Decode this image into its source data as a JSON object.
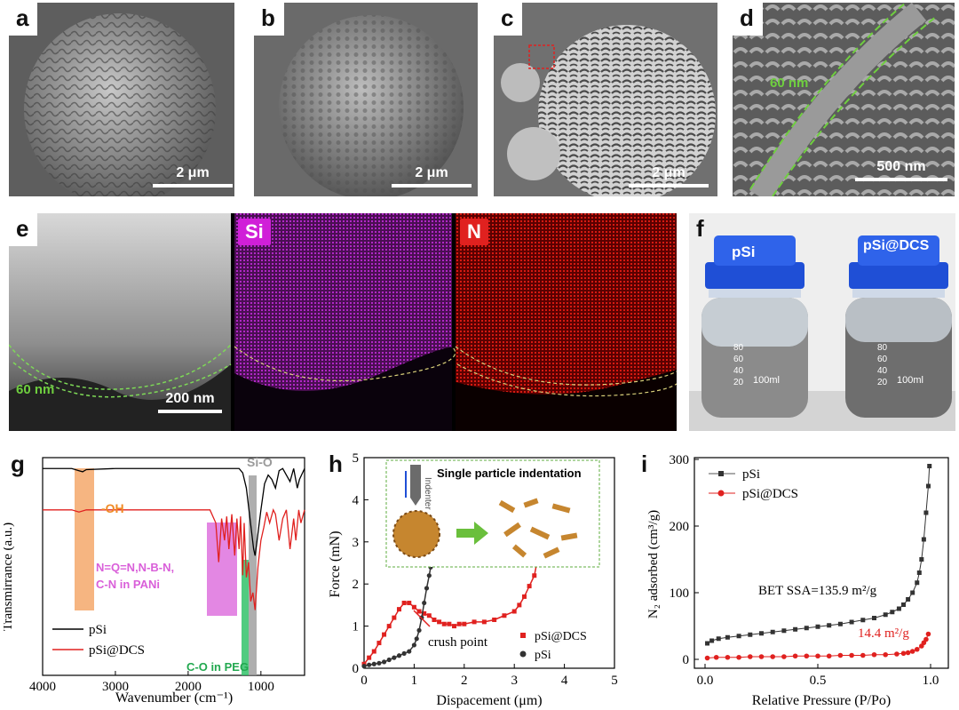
{
  "panels": {
    "a": {
      "label": "a",
      "scale": "2 μm"
    },
    "b": {
      "label": "b",
      "scale": "2 μm"
    },
    "c": {
      "label": "c",
      "scale": "2 μm"
    },
    "d": {
      "label": "d",
      "scale": "500 nm",
      "thickness": "60 nm"
    },
    "e": {
      "label": "e",
      "scale": "200 nm",
      "thickness": "60 nm",
      "map_si": "Si",
      "map_n": "N"
    },
    "f": {
      "label": "f",
      "bottle_left": "pSi",
      "bottle_right": "pSi@DCS",
      "volume": "100ml",
      "marks": [
        "80",
        "60",
        "40",
        "20"
      ]
    },
    "g": {
      "label": "g",
      "peak_oh": "-OH",
      "peak_sio": "Si-O",
      "peak_n_line1": "N=Q=N,N-B-N,",
      "peak_n_line2": "C-N in PANi",
      "peak_co": "C-O in PEG"
    },
    "h": {
      "label": "h",
      "inset_title": "Single particle indentation",
      "indenter": "Indenter",
      "crush": "crush point"
    },
    "i": {
      "label": "i",
      "bet1": "BET SSA=135.9 m²/g",
      "bet2": "14.4 m²/g"
    }
  },
  "chart_data": [
    {
      "id": "g",
      "type": "line",
      "xlabel": "Wavenumber (cm⁻¹)",
      "ylabel": "Transmirrance (a.u.)",
      "xlim": [
        4000,
        400
      ],
      "xticks": [
        4000,
        3000,
        2000,
        1000
      ],
      "series": [
        {
          "name": "pSi",
          "color": "#000000",
          "x": [
            4000,
            3600,
            3500,
            3450,
            3400,
            3000,
            2000,
            1300,
            1250,
            1200,
            1150,
            1100,
            1080,
            1060,
            1000,
            950,
            900,
            850,
            800,
            750,
            700,
            600,
            550,
            500,
            470,
            400
          ],
          "y": [
            0.95,
            0.95,
            0.94,
            0.935,
            0.945,
            0.95,
            0.95,
            0.95,
            0.93,
            0.86,
            0.72,
            0.58,
            0.55,
            0.6,
            0.76,
            0.88,
            0.92,
            0.9,
            0.86,
            0.94,
            0.95,
            0.89,
            0.95,
            0.86,
            0.9,
            0.95
          ]
        },
        {
          "name": "pSi@DCS",
          "color": "#e0211f",
          "x": [
            4000,
            3600,
            3500,
            3400,
            3000,
            2000,
            1700,
            1620,
            1580,
            1540,
            1500,
            1470,
            1440,
            1400,
            1360,
            1330,
            1300,
            1280,
            1250,
            1230,
            1200,
            1170,
            1140,
            1110,
            1080,
            1040,
            1000,
            960,
            920,
            880,
            830,
            800,
            750,
            700,
            650,
            600,
            550,
            520,
            480,
            450,
            400
          ],
          "y": [
            0.76,
            0.76,
            0.75,
            0.76,
            0.76,
            0.76,
            0.76,
            0.7,
            0.52,
            0.72,
            0.62,
            0.73,
            0.58,
            0.74,
            0.55,
            0.72,
            0.58,
            0.73,
            0.46,
            0.7,
            0.45,
            0.52,
            0.34,
            0.38,
            0.3,
            0.5,
            0.62,
            0.68,
            0.75,
            0.7,
            0.76,
            0.74,
            0.62,
            0.72,
            0.76,
            0.58,
            0.72,
            0.62,
            0.76,
            0.7,
            0.76
          ]
        }
      ]
    },
    {
      "id": "h",
      "type": "line",
      "xlabel": "Dispacement (μm)",
      "ylabel": "Force (mN)",
      "xlim": [
        0,
        5
      ],
      "ylim": [
        0,
        5
      ],
      "xticks": [
        0,
        1,
        2,
        3,
        4,
        5
      ],
      "yticks": [
        0,
        1,
        2,
        3,
        4,
        5
      ],
      "series": [
        {
          "name": "pSi@DCS",
          "color": "#e0211f",
          "x": [
            0,
            0.1,
            0.2,
            0.3,
            0.4,
            0.5,
            0.6,
            0.7,
            0.8,
            0.9,
            1.0,
            1.1,
            1.2,
            1.3,
            1.4,
            1.5,
            1.6,
            1.7,
            1.8,
            1.9,
            2.0,
            2.2,
            2.4,
            2.6,
            2.8,
            3.0,
            3.1,
            3.2,
            3.3,
            3.4,
            3.45
          ],
          "y": [
            0.1,
            0.25,
            0.4,
            0.6,
            0.8,
            1.0,
            1.2,
            1.4,
            1.55,
            1.55,
            1.45,
            1.35,
            1.3,
            1.25,
            1.15,
            1.1,
            1.05,
            1.05,
            1.0,
            1.05,
            1.05,
            1.1,
            1.1,
            1.15,
            1.25,
            1.35,
            1.5,
            1.7,
            1.95,
            2.2,
            2.5
          ]
        },
        {
          "name": "pSi",
          "color": "#333333",
          "x": [
            0,
            0.1,
            0.2,
            0.3,
            0.4,
            0.5,
            0.6,
            0.7,
            0.8,
            0.9,
            1.0,
            1.05,
            1.1,
            1.15,
            1.2,
            1.25,
            1.3,
            1.33
          ],
          "y": [
            0.05,
            0.08,
            0.1,
            0.12,
            0.15,
            0.2,
            0.25,
            0.3,
            0.35,
            0.4,
            0.55,
            0.7,
            0.9,
            1.2,
            1.55,
            1.9,
            2.2,
            2.4
          ]
        }
      ]
    },
    {
      "id": "i",
      "type": "line",
      "xlabel": "Relative Pressure (P/Po)",
      "ylabel": "N₂ adsorbed (cm³/g)",
      "xlim": [
        0,
        1
      ],
      "ylim": [
        0,
        300
      ],
      "xticks": [
        0.0,
        0.5,
        1.0
      ],
      "yticks": [
        0,
        100,
        200,
        300
      ],
      "series": [
        {
          "name": "pSi",
          "color": "#333333",
          "x": [
            0.01,
            0.03,
            0.06,
            0.1,
            0.15,
            0.2,
            0.25,
            0.3,
            0.35,
            0.4,
            0.45,
            0.5,
            0.55,
            0.6,
            0.65,
            0.7,
            0.75,
            0.8,
            0.83,
            0.86,
            0.88,
            0.9,
            0.92,
            0.94,
            0.95,
            0.96,
            0.97,
            0.98,
            0.99,
            0.995
          ],
          "y": [
            24,
            28,
            31,
            33,
            35,
            37,
            39,
            41,
            43,
            45,
            47,
            49,
            51,
            53,
            56,
            59,
            62,
            67,
            71,
            76,
            82,
            90,
            100,
            115,
            130,
            150,
            180,
            220,
            260,
            290
          ]
        },
        {
          "name": "pSi@DCS",
          "color": "#e0211f",
          "x": [
            0.01,
            0.05,
            0.1,
            0.15,
            0.2,
            0.25,
            0.3,
            0.35,
            0.4,
            0.45,
            0.5,
            0.55,
            0.6,
            0.65,
            0.7,
            0.75,
            0.8,
            0.85,
            0.88,
            0.9,
            0.92,
            0.94,
            0.96,
            0.97,
            0.98,
            0.99
          ],
          "y": [
            2,
            3,
            3,
            3,
            4,
            4,
            4,
            4,
            5,
            5,
            5,
            5,
            6,
            6,
            6,
            7,
            7,
            8,
            9,
            10,
            12,
            15,
            20,
            25,
            30,
            38
          ]
        }
      ]
    }
  ]
}
